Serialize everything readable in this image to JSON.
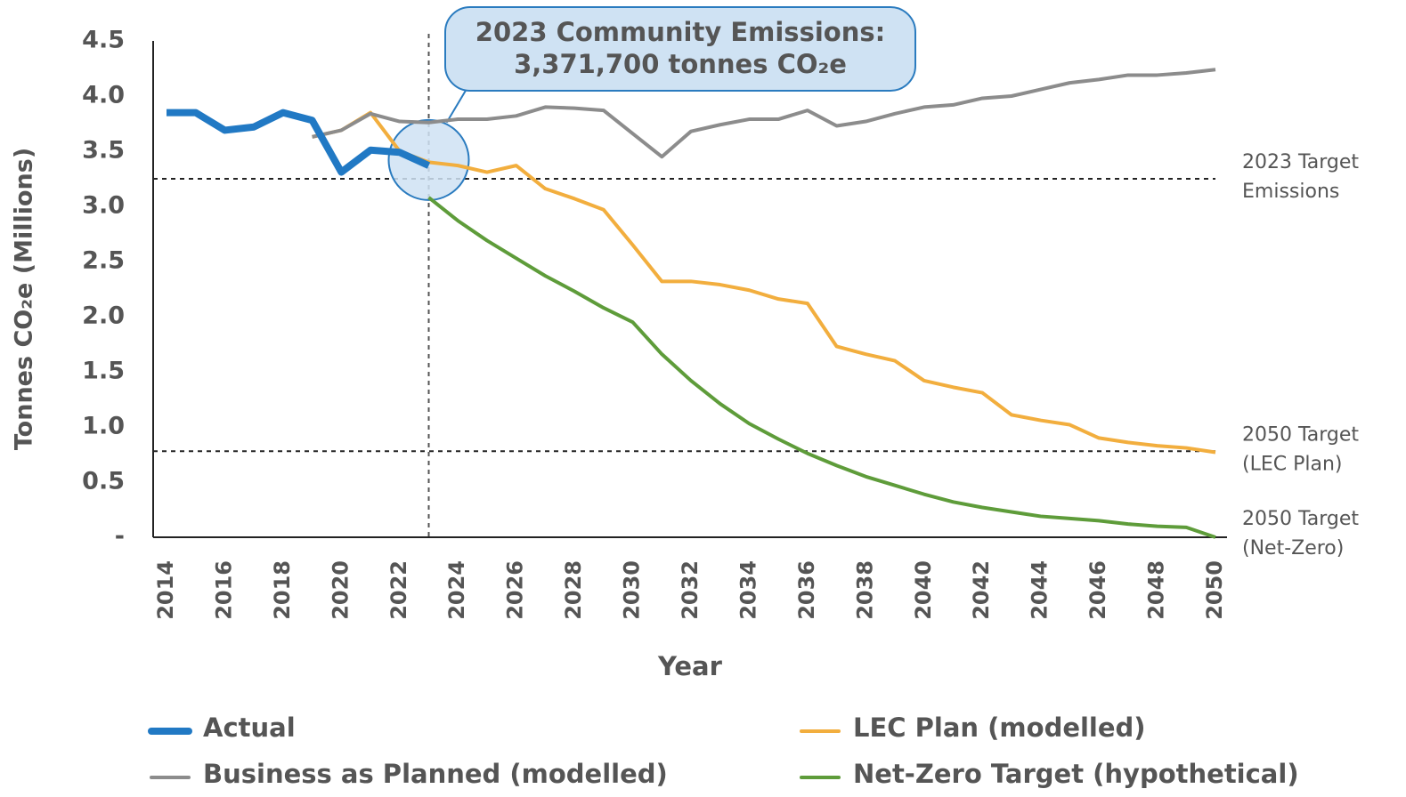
{
  "chart_data": {
    "type": "line",
    "xlabel": "Year",
    "ylabel": "Tonnes CO₂e (Millions)",
    "x": [
      2014,
      2015,
      2016,
      2017,
      2018,
      2019,
      2020,
      2021,
      2022,
      2023,
      2024,
      2025,
      2026,
      2027,
      2028,
      2029,
      2030,
      2031,
      2032,
      2033,
      2034,
      2035,
      2036,
      2037,
      2038,
      2039,
      2040,
      2041,
      2042,
      2043,
      2044,
      2045,
      2046,
      2047,
      2048,
      2049,
      2050
    ],
    "series": [
      {
        "name": "Actual",
        "color": "#2179c4",
        "line_width": 8,
        "values": [
          3.85,
          3.85,
          3.69,
          3.72,
          3.85,
          3.78,
          3.31,
          3.51,
          3.49,
          3.37,
          null,
          null,
          null,
          null,
          null,
          null,
          null,
          null,
          null,
          null,
          null,
          null,
          null,
          null,
          null,
          null,
          null,
          null,
          null,
          null,
          null,
          null,
          null,
          null,
          null,
          null,
          null
        ]
      },
      {
        "name": "Business as Planned (modelled)",
        "color": "#8c8c8c",
        "line_width": 4,
        "values": [
          null,
          null,
          null,
          null,
          null,
          3.63,
          3.69,
          3.84,
          3.77,
          3.76,
          3.79,
          3.79,
          3.82,
          3.9,
          3.89,
          3.87,
          3.66,
          3.45,
          3.68,
          3.74,
          3.79,
          3.79,
          3.87,
          3.73,
          3.77,
          3.84,
          3.9,
          3.92,
          3.98,
          4.0,
          4.06,
          4.12,
          4.15,
          4.19,
          4.19,
          4.21,
          4.24
        ]
      },
      {
        "name": "LEC Plan (modelled)",
        "color": "#f2ae3e",
        "line_width": 4,
        "values": [
          null,
          null,
          null,
          null,
          null,
          3.63,
          3.69,
          3.85,
          3.5,
          3.4,
          3.37,
          3.31,
          3.37,
          3.16,
          3.07,
          2.97,
          2.65,
          2.32,
          2.32,
          2.29,
          2.24,
          2.16,
          2.12,
          1.73,
          1.66,
          1.6,
          1.42,
          1.36,
          1.31,
          1.11,
          1.06,
          1.02,
          0.9,
          0.86,
          0.83,
          0.81,
          0.77
        ]
      },
      {
        "name": "Net-Zero Target (hypothetical)",
        "color": "#5e9c3a",
        "line_width": 4,
        "values": [
          null,
          null,
          null,
          null,
          null,
          null,
          null,
          null,
          null,
          3.08,
          2.87,
          2.69,
          2.53,
          2.37,
          2.23,
          2.08,
          1.95,
          1.66,
          1.42,
          1.21,
          1.03,
          0.89,
          0.76,
          0.65,
          0.55,
          0.47,
          0.39,
          0.32,
          0.27,
          0.23,
          0.19,
          0.17,
          0.15,
          0.12,
          0.1,
          0.09,
          0
        ]
      }
    ],
    "xlim": [
      2014,
      2050
    ],
    "xticks": [
      2014,
      2016,
      2018,
      2020,
      2022,
      2024,
      2026,
      2028,
      2030,
      2032,
      2034,
      2036,
      2038,
      2040,
      2042,
      2044,
      2046,
      2048,
      2050
    ],
    "ylim": [
      0,
      4.5
    ],
    "yticks": [
      {
        "value": 0,
        "label": "-"
      },
      0.5,
      {
        "value": 1,
        "label": "1.0"
      },
      1.5,
      {
        "value": 2,
        "label": "2.0"
      },
      2.5,
      {
        "value": 3,
        "label": "3.0"
      },
      3.5,
      {
        "value": 4,
        "label": "4.0"
      },
      4.5
    ],
    "grid": false,
    "reference_lines": [
      {
        "value": 3.25,
        "label": [
          "2023 Target",
          "Emissions"
        ],
        "style": "dotted"
      },
      {
        "value": 0.78,
        "label": [
          "2050 Target",
          "(LEC Plan)"
        ],
        "style": "dotted"
      },
      {
        "value": 0,
        "label": [
          "2050 Target",
          "(Net-Zero)"
        ],
        "style": "none"
      }
    ],
    "annotation": {
      "x": 2023,
      "y": 3.3717,
      "text": [
        "2023 Community Emissions:",
        "3,371,700 tonnes CO₂e"
      ]
    }
  }
}
